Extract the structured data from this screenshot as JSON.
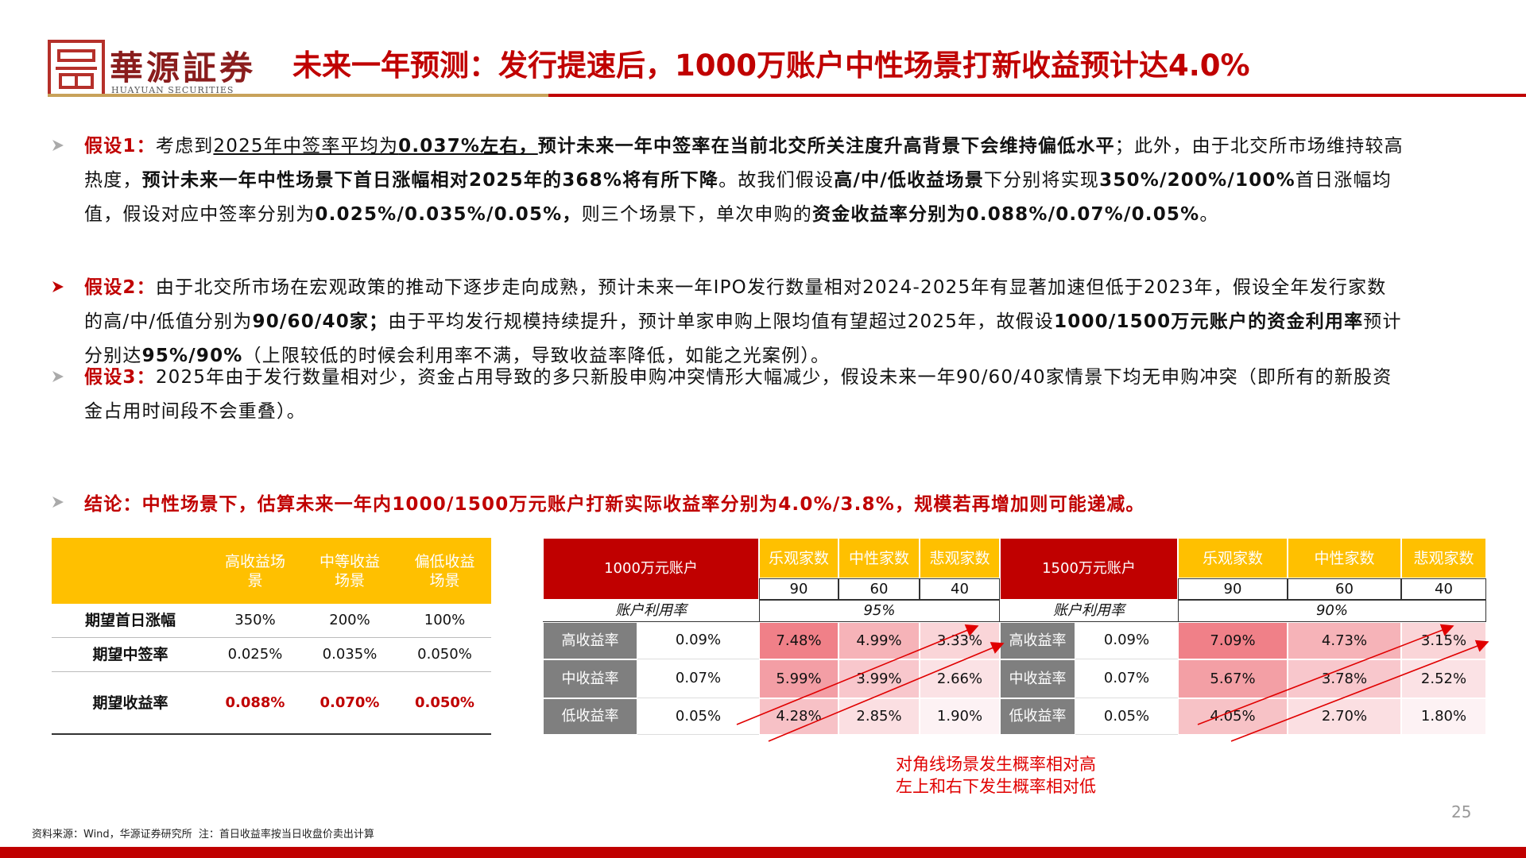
{
  "header": {
    "logo_name": "華源証券",
    "logo_sub": "HUAYUAN SECURITIES",
    "title": "未来一年预测：发行提速后，1000万账户中性场景打新收益预计达4.0%"
  },
  "bullets": [
    {
      "runs": [
        {
          "text": "假设1：",
          "bold": true,
          "red": true
        },
        {
          "text": "考虑到"
        },
        {
          "text": "2025年中签率平均为",
          "underline": true
        },
        {
          "text": "0.037%左右，",
          "underline": true,
          "bold": true
        },
        {
          "text": "预计未来一年中签率在当前北交所关注度升高背景下会维持偏低水平",
          "bold": true
        },
        {
          "text": "；此外，由于北交所市场维持较高热度，"
        },
        {
          "text": "预计未来一年中性场景下首日涨幅相对2025年的368%将有所下降",
          "bold": true
        },
        {
          "text": "。故我们假设"
        },
        {
          "text": "高/中/低收益场景",
          "bold": true
        },
        {
          "text": "下分别将实现"
        },
        {
          "text": "350%/200%/100%",
          "bold": true
        },
        {
          "text": "首日涨幅均值，假设对应中签率分别为"
        },
        {
          "text": "0.025%/0.035%/0.05%，",
          "bold": true
        },
        {
          "text": "则三个场景下，单次申购的"
        },
        {
          "text": "资金收益率分别为0.088%/0.07%/0.05%",
          "bold": true
        },
        {
          "text": "。"
        }
      ]
    },
    {
      "runs": [
        {
          "text": "假设2：",
          "bold": true,
          "red": true
        },
        {
          "text": "由于北交所市场在宏观政策的推动下逐步走向成熟，预计未来一年IPO发行数量相对2024-2025年有显著加速但低于2023年，假设全年发行家数的高/中/低值分别为"
        },
        {
          "text": "90/60/40家；",
          "bold": true
        },
        {
          "text": "由于平均发行规模持续提升，预计单家申购上限均值有望超过2025年，故假设"
        },
        {
          "text": "1000/1500万元账户的资金利用率",
          "bold": true
        },
        {
          "text": "预计分别达"
        },
        {
          "text": "95%/90%",
          "bold": true
        },
        {
          "text": "（上限较低的时候会利用率不满，导致收益率降低，如能之光案例）。"
        }
      ]
    },
    {
      "runs": [
        {
          "text": "假设3：",
          "bold": true,
          "red": true
        },
        {
          "text": "2025年由于发行数量相对少，资金占用导致的多只新股申购冲突情形大幅减少，假设未来一年90/60/40家情景下均无申购冲突（即所有的新股资金占用时间段不会重叠）。"
        }
      ]
    }
  ],
  "conclusion": "结论：中性场景下，估算未来一年内1000/1500万元账户打新实际收益率分别为4.0%/3.8%，规模若再增加则可能递减。",
  "scenario_table": {
    "headers": [
      "高收益场景",
      "中等收益场景",
      "偏低收益场景"
    ],
    "rows": [
      {
        "label": "期望首日涨幅",
        "cells": [
          "350%",
          "200%",
          "100%"
        ]
      },
      {
        "label": "期望中签率",
        "cells": [
          "0.025%",
          "0.035%",
          "0.050%"
        ]
      },
      {
        "label": "期望收益率",
        "cells": [
          "0.088%",
          "0.070%",
          "0.050%"
        ],
        "highlight": true
      }
    ]
  },
  "return_table": {
    "blocks": [
      {
        "account": "1000万元账户",
        "headers": [
          "乐观家数",
          "中性家数",
          "悲观家数"
        ],
        "counts": [
          "90",
          "60",
          "40"
        ],
        "util_label": "账户利用率",
        "util": "95%",
        "rows": [
          {
            "label": "高收益率",
            "rate": "0.09%",
            "values": [
              "7.48%",
              "4.99%",
              "3.33%"
            ]
          },
          {
            "label": "中收益率",
            "rate": "0.07%",
            "values": [
              "5.99%",
              "3.99%",
              "2.66%"
            ]
          },
          {
            "label": "低收益率",
            "rate": "0.05%",
            "values": [
              "4.28%",
              "2.85%",
              "1.90%"
            ]
          }
        ]
      },
      {
        "account": "1500万元账户",
        "headers": [
          "乐观家数",
          "中性家数",
          "悲观家数"
        ],
        "counts": [
          "90",
          "60",
          "40"
        ],
        "util_label": "账户利用率",
        "util": "90%",
        "rows": [
          {
            "label": "高收益率",
            "rate": "0.09%",
            "values": [
              "7.09%",
              "4.73%",
              "3.15%"
            ]
          },
          {
            "label": "中收益率",
            "rate": "0.07%",
            "values": [
              "5.67%",
              "3.78%",
              "2.52%"
            ]
          },
          {
            "label": "低收益率",
            "rate": "0.05%",
            "values": [
              "4.05%",
              "2.70%",
              "1.80%"
            ]
          }
        ]
      }
    ]
  },
  "annotation": [
    "对角线场景发生概率相对高",
    "左上和右下发生概率相对低"
  ],
  "footer": {
    "source": "资料来源：Wind，华源证券研究所  注：首日收益率按当日收盘价卖出计算",
    "page": "25"
  }
}
